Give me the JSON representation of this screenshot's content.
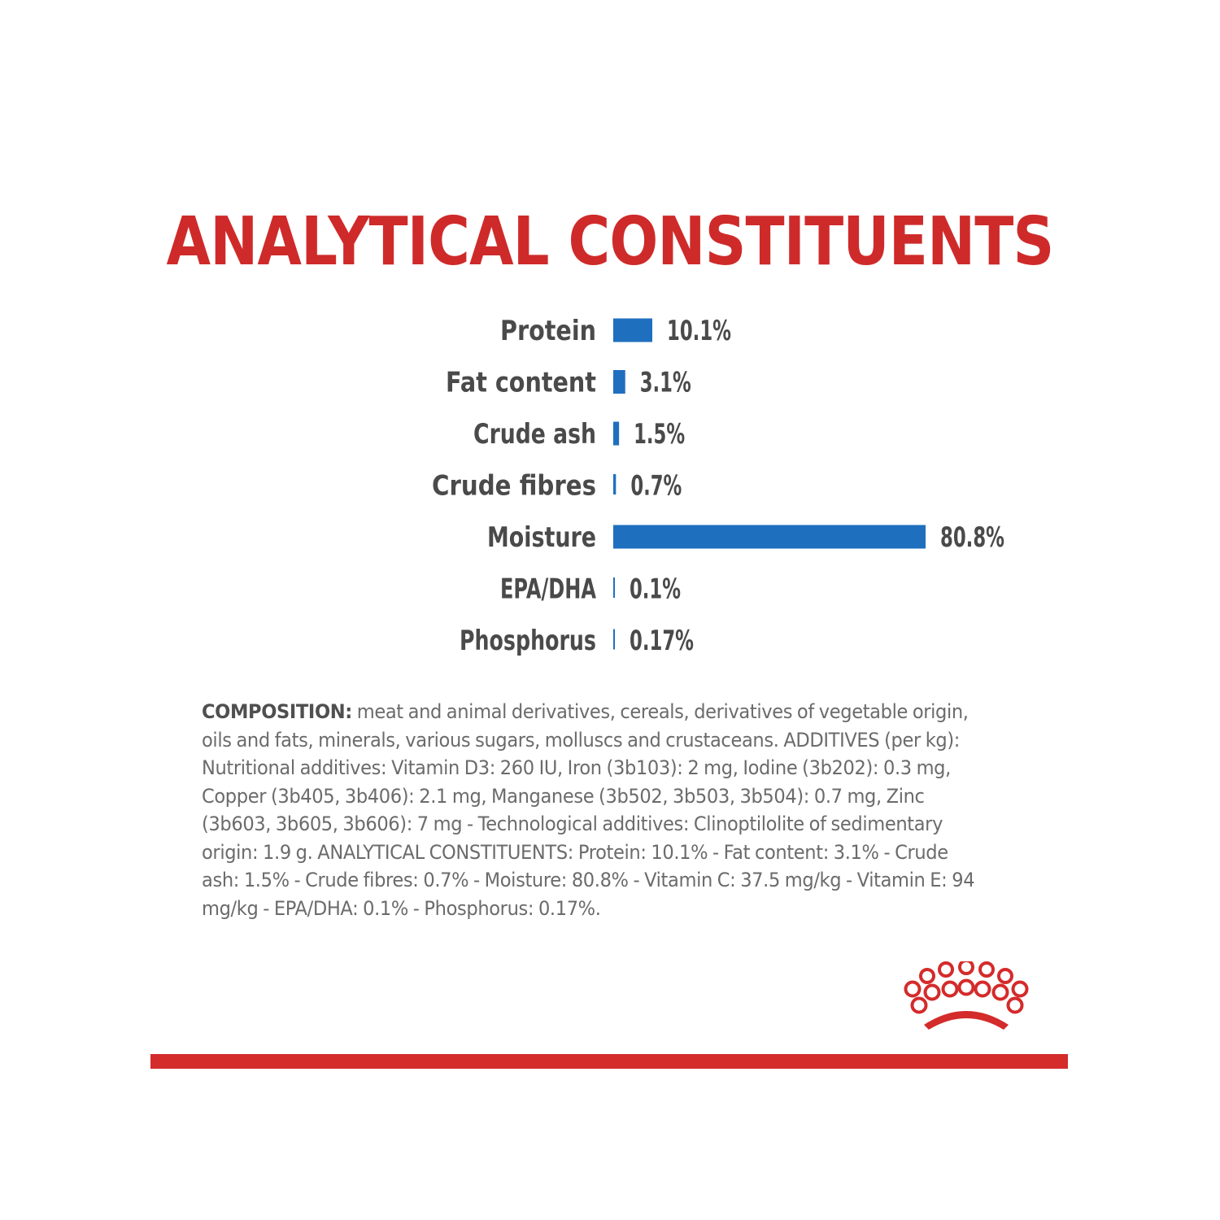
{
  "colors": {
    "title": "#cf2a2a",
    "bar": "#1f6fbf",
    "label_text": "#4a4a4a",
    "rule": "#d42b2b",
    "logo": "#d42b2b"
  },
  "chart_data": {
    "type": "bar",
    "orientation": "horizontal",
    "title": "ANALYTICAL CONSTITUENTS",
    "unit": "%",
    "xlim": [
      0,
      80.8
    ],
    "grid": false,
    "categories": [
      "Protein",
      "Fat content",
      "Crude ash",
      "Crude fibres",
      "Moisture",
      "EPA/DHA",
      "Phosphorus"
    ],
    "values": [
      10.1,
      3.1,
      1.5,
      0.7,
      80.8,
      0.1,
      0.17
    ],
    "value_labels": [
      "10.1%",
      "3.1%",
      "1.5%",
      "0.7%",
      "80.8%",
      "0.1%",
      "0.17%"
    ]
  },
  "composition": {
    "label": "COMPOSITION:",
    "text": " meat and animal derivatives, cereals, derivatives of vegetable origin, oils and fats, minerals, various sugars, molluscs and crustaceans. ADDITIVES (per kg): Nutritional additives: Vitamin D3: 260 IU, Iron (3b103): 2 mg, Iodine (3b202): 0.3 mg, Copper (3b405, 3b406): 2.1 mg, Manganese (3b502, 3b503, 3b504): 0.7 mg, Zinc (3b603, 3b605, 3b606): 7 mg - Technological additives: Clinoptilolite of sedimentary origin: 1.9 g. ANALYTICAL CONSTITUENTS: Protein: 10.1% - Fat content: 3.1% - Crude ash: 1.5% - Crude fibres: 0.7% - Moisture: 80.8% - Vitamin C: 37.5 mg/kg - Vitamin E: 94 mg/kg - EPA/DHA: 0.1% - Phosphorus: 0.17%."
  },
  "logo": {
    "icon": "crown-dots-logo-icon"
  }
}
